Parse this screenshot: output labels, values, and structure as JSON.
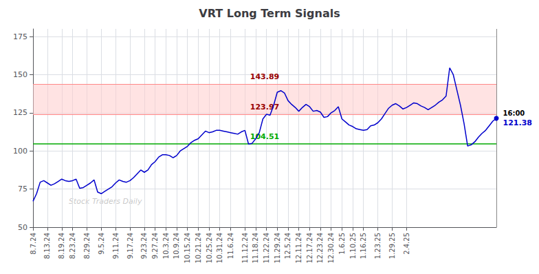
{
  "chart_data": {
    "type": "line",
    "title": "VRT Long Term Signals",
    "watermark": "Stock Traders Daily",
    "categories": [
      "8.7.24",
      null,
      null,
      null,
      "8.13.24",
      null,
      null,
      null,
      "8.19.24",
      null,
      null,
      "8.23.24",
      null,
      null,
      null,
      "8.29.24",
      null,
      null,
      null,
      "9.5.24",
      null,
      null,
      null,
      "9.11.24",
      null,
      null,
      null,
      "9.17.24",
      null,
      null,
      null,
      "9.23.24",
      null,
      null,
      "9.27.24",
      null,
      null,
      "10.3.24",
      null,
      null,
      "10.9.24",
      null,
      null,
      "10.15.24",
      null,
      null,
      "10.21.24",
      null,
      null,
      "10.25.24",
      null,
      null,
      "10.31.24",
      null,
      null,
      "11.6.24",
      null,
      null,
      null,
      "11.12.24",
      null,
      null,
      "11.18.24",
      null,
      null,
      "11.22.24",
      null,
      null,
      "11.29.24",
      null,
      null,
      "12.5.24",
      null,
      null,
      "12.11.24",
      null,
      null,
      "12.17.24",
      null,
      null,
      "12.23.24",
      null,
      null,
      "12.30.24",
      null,
      null,
      "1.6.25",
      null,
      null,
      "1.10.25",
      null,
      null,
      "1.16.25",
      null,
      null,
      null,
      "1.23.25",
      null,
      null,
      null,
      "1.29.25",
      null,
      null,
      null,
      "2.4.25",
      null,
      null,
      null,
      null,
      null,
      null,
      null,
      null,
      null,
      null,
      null,
      null,
      null,
      null,
      null,
      null,
      null,
      null,
      null,
      null,
      null,
      null,
      null,
      null,
      null
    ],
    "values": [
      67.0,
      72.0,
      79.5,
      80.5,
      79.0,
      77.5,
      78.5,
      80.0,
      81.5,
      80.5,
      80.0,
      80.5,
      81.5,
      75.5,
      76.0,
      77.5,
      79.0,
      81.0,
      73.0,
      72.0,
      73.5,
      75.0,
      76.5,
      79.0,
      81.0,
      80.0,
      79.5,
      80.5,
      82.5,
      85.0,
      87.5,
      86.0,
      87.5,
      91.0,
      93.0,
      96.0,
      97.5,
      97.5,
      97.0,
      95.5,
      97.0,
      100.0,
      101.5,
      103.0,
      105.5,
      107.0,
      108.0,
      110.5,
      113.0,
      112.0,
      112.5,
      113.5,
      113.5,
      113.0,
      112.5,
      112.0,
      111.5,
      111.0,
      112.5,
      113.5,
      104.51,
      105.0,
      108.0,
      112.0,
      121.0,
      124.0,
      123.5,
      130.0,
      138.5,
      139.5,
      138.0,
      133.0,
      130.5,
      128.5,
      126.0,
      128.5,
      130.5,
      129.0,
      126.0,
      126.5,
      125.5,
      122.0,
      122.5,
      125.0,
      126.5,
      129.0,
      121.0,
      119.0,
      117.0,
      116.0,
      114.5,
      114.0,
      113.5,
      114.0,
      116.5,
      117.0,
      118.5,
      121.0,
      124.5,
      128.0,
      130.0,
      131.0,
      129.5,
      127.5,
      128.5,
      130.0,
      131.5,
      131.0,
      129.5,
      128.5,
      127.0,
      128.5,
      130.0,
      132.0,
      133.5,
      136.0,
      154.5,
      150.0,
      140.0,
      130.0,
      118.0,
      103.2,
      104.0,
      106.0,
      109.0,
      111.5,
      113.5,
      116.5,
      119.5,
      121.38
    ],
    "color": "#0000cc",
    "ylim": [
      50,
      180
    ],
    "yticks": [
      50,
      75,
      100,
      125,
      150,
      175
    ],
    "grid": true,
    "support_line": {
      "value": 104.51,
      "label": "104.51",
      "color": "#00aa00"
    },
    "resistance_band": {
      "lower": 123.97,
      "upper": 143.89,
      "lower_label": "123.97",
      "upper_label": "143.89",
      "color": "#ff8888",
      "fill_color": "#ffcccc",
      "label_color": "#990000"
    },
    "end_time_label": "16:00",
    "end_value_label": "121.38"
  }
}
